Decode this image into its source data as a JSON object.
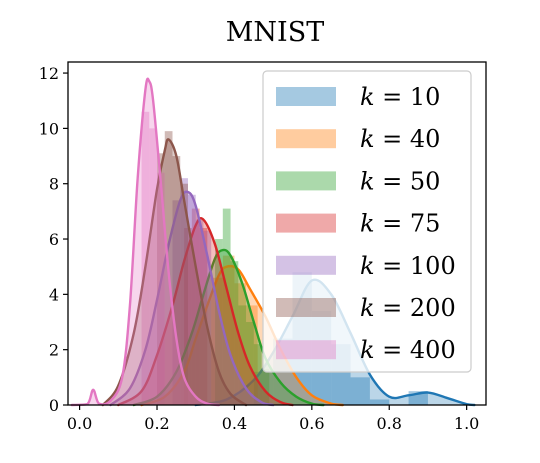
{
  "chart_data": {
    "type": "area",
    "title": "MNIST",
    "xlabel": "",
    "ylabel": "",
    "xlim": [
      -0.03,
      1.05
    ],
    "ylim": [
      0,
      12.4
    ],
    "grid": false,
    "legend_position": "top-right",
    "x_ticks": [
      0.0,
      0.2,
      0.4,
      0.6,
      0.8,
      1.0
    ],
    "x_tick_labels": [
      "0.0",
      "0.2",
      "0.4",
      "0.6",
      "0.8",
      "1.0"
    ],
    "y_ticks": [
      0,
      2,
      4,
      6,
      8,
      10,
      12
    ],
    "y_tick_labels": [
      "0",
      "2",
      "4",
      "6",
      "8",
      "10",
      "12"
    ],
    "series": [
      {
        "name": "k = 10",
        "legend_var": "k",
        "legend_value": "10",
        "color": "#1f77b4",
        "kde": [
          [
            0.3,
            0.0
          ],
          [
            0.38,
            0.2
          ],
          [
            0.45,
            0.9
          ],
          [
            0.5,
            1.9
          ],
          [
            0.55,
            3.2
          ],
          [
            0.6,
            4.5
          ],
          [
            0.65,
            4.0
          ],
          [
            0.7,
            2.6
          ],
          [
            0.75,
            1.1
          ],
          [
            0.8,
            0.3
          ],
          [
            0.85,
            0.35
          ],
          [
            0.9,
            0.45
          ],
          [
            0.95,
            0.25
          ],
          [
            1.0,
            0.03
          ],
          [
            1.02,
            0.0
          ]
        ],
        "hist": [
          [
            0.45,
            0.5,
            1.2
          ],
          [
            0.5,
            0.55,
            2.4
          ],
          [
            0.55,
            0.6,
            4.8
          ],
          [
            0.6,
            0.65,
            3.4
          ],
          [
            0.65,
            0.7,
            2.2
          ],
          [
            0.7,
            0.75,
            1.0
          ],
          [
            0.75,
            0.8,
            0.2
          ],
          [
            0.85,
            0.9,
            0.5
          ]
        ]
      },
      {
        "name": "k = 40",
        "legend_var": "k",
        "legend_value": "40",
        "color": "#ff7f0e",
        "kde": [
          [
            0.16,
            0.0
          ],
          [
            0.22,
            0.3
          ],
          [
            0.27,
            1.2
          ],
          [
            0.3,
            2.4
          ],
          [
            0.33,
            3.6
          ],
          [
            0.36,
            4.7
          ],
          [
            0.38,
            5.0
          ],
          [
            0.41,
            4.9
          ],
          [
            0.44,
            4.2
          ],
          [
            0.48,
            3.2
          ],
          [
            0.52,
            2.0
          ],
          [
            0.56,
            1.0
          ],
          [
            0.6,
            0.35
          ],
          [
            0.65,
            0.05
          ],
          [
            0.68,
            0.0
          ]
        ],
        "hist": [
          [
            0.34,
            0.37,
            4.6
          ],
          [
            0.37,
            0.4,
            5.4
          ],
          [
            0.4,
            0.43,
            4.4
          ],
          [
            0.43,
            0.46,
            3.6
          ]
        ]
      },
      {
        "name": "k = 50",
        "legend_var": "k",
        "legend_value": "50",
        "color": "#2ca02c",
        "kde": [
          [
            0.14,
            0.0
          ],
          [
            0.2,
            0.3
          ],
          [
            0.25,
            1.2
          ],
          [
            0.29,
            2.6
          ],
          [
            0.32,
            4.0
          ],
          [
            0.35,
            5.3
          ],
          [
            0.37,
            5.6
          ],
          [
            0.39,
            5.4
          ],
          [
            0.42,
            4.4
          ],
          [
            0.45,
            3.0
          ],
          [
            0.48,
            1.7
          ],
          [
            0.52,
            0.8
          ],
          [
            0.56,
            0.3
          ],
          [
            0.6,
            0.05
          ],
          [
            0.63,
            0.0
          ]
        ],
        "hist": [
          [
            0.35,
            0.37,
            6.0
          ],
          [
            0.37,
            0.39,
            7.1
          ],
          [
            0.39,
            0.41,
            5.2
          ],
          [
            0.41,
            0.43,
            3.6
          ],
          [
            0.43,
            0.45,
            3.0
          ],
          [
            0.45,
            0.47,
            2.2
          ],
          [
            0.47,
            0.49,
            1.3
          ]
        ]
      },
      {
        "name": "k = 75",
        "legend_var": "k",
        "legend_value": "75",
        "color": "#d62728",
        "kde": [
          [
            0.1,
            0.0
          ],
          [
            0.16,
            0.5
          ],
          [
            0.2,
            1.8
          ],
          [
            0.24,
            3.6
          ],
          [
            0.27,
            5.2
          ],
          [
            0.3,
            6.5
          ],
          [
            0.32,
            6.7
          ],
          [
            0.35,
            5.8
          ],
          [
            0.38,
            4.2
          ],
          [
            0.41,
            2.6
          ],
          [
            0.44,
            1.4
          ],
          [
            0.48,
            0.5
          ],
          [
            0.52,
            0.1
          ],
          [
            0.55,
            0.0
          ]
        ],
        "hist": [
          [
            0.27,
            0.29,
            6.4
          ],
          [
            0.29,
            0.31,
            7.1
          ],
          [
            0.31,
            0.33,
            6.4
          ]
        ]
      },
      {
        "name": "k = 100",
        "legend_var": "k",
        "legend_value": "100",
        "color": "#9467bd",
        "kde": [
          [
            0.08,
            0.0
          ],
          [
            0.13,
            0.6
          ],
          [
            0.17,
            2.0
          ],
          [
            0.2,
            3.8
          ],
          [
            0.23,
            5.8
          ],
          [
            0.26,
            7.4
          ],
          [
            0.28,
            7.7
          ],
          [
            0.3,
            7.2
          ],
          [
            0.33,
            5.4
          ],
          [
            0.36,
            3.4
          ],
          [
            0.39,
            1.8
          ],
          [
            0.43,
            0.6
          ],
          [
            0.47,
            0.1
          ],
          [
            0.5,
            0.0
          ]
        ],
        "hist": [
          [
            0.24,
            0.26,
            7.4
          ],
          [
            0.26,
            0.28,
            8.2
          ],
          [
            0.28,
            0.3,
            7.6
          ],
          [
            0.3,
            0.32,
            6.7
          ],
          [
            0.32,
            0.34,
            6.3
          ]
        ]
      },
      {
        "name": "k = 200",
        "legend_var": "k",
        "legend_value": "200",
        "color": "#8c564b",
        "kde": [
          [
            0.06,
            0.0
          ],
          [
            0.1,
            0.7
          ],
          [
            0.14,
            2.6
          ],
          [
            0.17,
            5.0
          ],
          [
            0.2,
            7.8
          ],
          [
            0.22,
            9.2
          ],
          [
            0.23,
            9.6
          ],
          [
            0.25,
            9.0
          ],
          [
            0.27,
            7.4
          ],
          [
            0.3,
            5.0
          ],
          [
            0.33,
            2.8
          ],
          [
            0.36,
            1.2
          ],
          [
            0.39,
            0.4
          ],
          [
            0.43,
            0.0
          ]
        ],
        "hist": [
          [
            0.2,
            0.22,
            9.1
          ],
          [
            0.22,
            0.24,
            9.9
          ],
          [
            0.24,
            0.26,
            9.0
          ],
          [
            0.26,
            0.28,
            8.0
          ]
        ]
      },
      {
        "name": "k = 400",
        "legend_var": "k",
        "legend_value": "400",
        "color": "#e377c2",
        "kde": [
          [
            -0.02,
            0.0
          ],
          [
            0.02,
            0.03
          ],
          [
            0.035,
            0.55
          ],
          [
            0.05,
            0.05
          ],
          [
            0.08,
            0.15
          ],
          [
            0.11,
            1.0
          ],
          [
            0.13,
            3.6
          ],
          [
            0.15,
            8.2
          ],
          [
            0.17,
            11.4
          ],
          [
            0.18,
            11.7
          ],
          [
            0.19,
            11.0
          ],
          [
            0.21,
            8.0
          ],
          [
            0.23,
            4.8
          ],
          [
            0.25,
            2.4
          ],
          [
            0.27,
            1.0
          ],
          [
            0.3,
            0.3
          ],
          [
            0.33,
            0.05
          ],
          [
            0.36,
            0.0
          ]
        ],
        "hist": [
          [
            0.16,
            0.18,
            10.6
          ],
          [
            0.18,
            0.2,
            10.0
          ],
          [
            0.2,
            0.22,
            8.4
          ]
        ]
      }
    ]
  }
}
